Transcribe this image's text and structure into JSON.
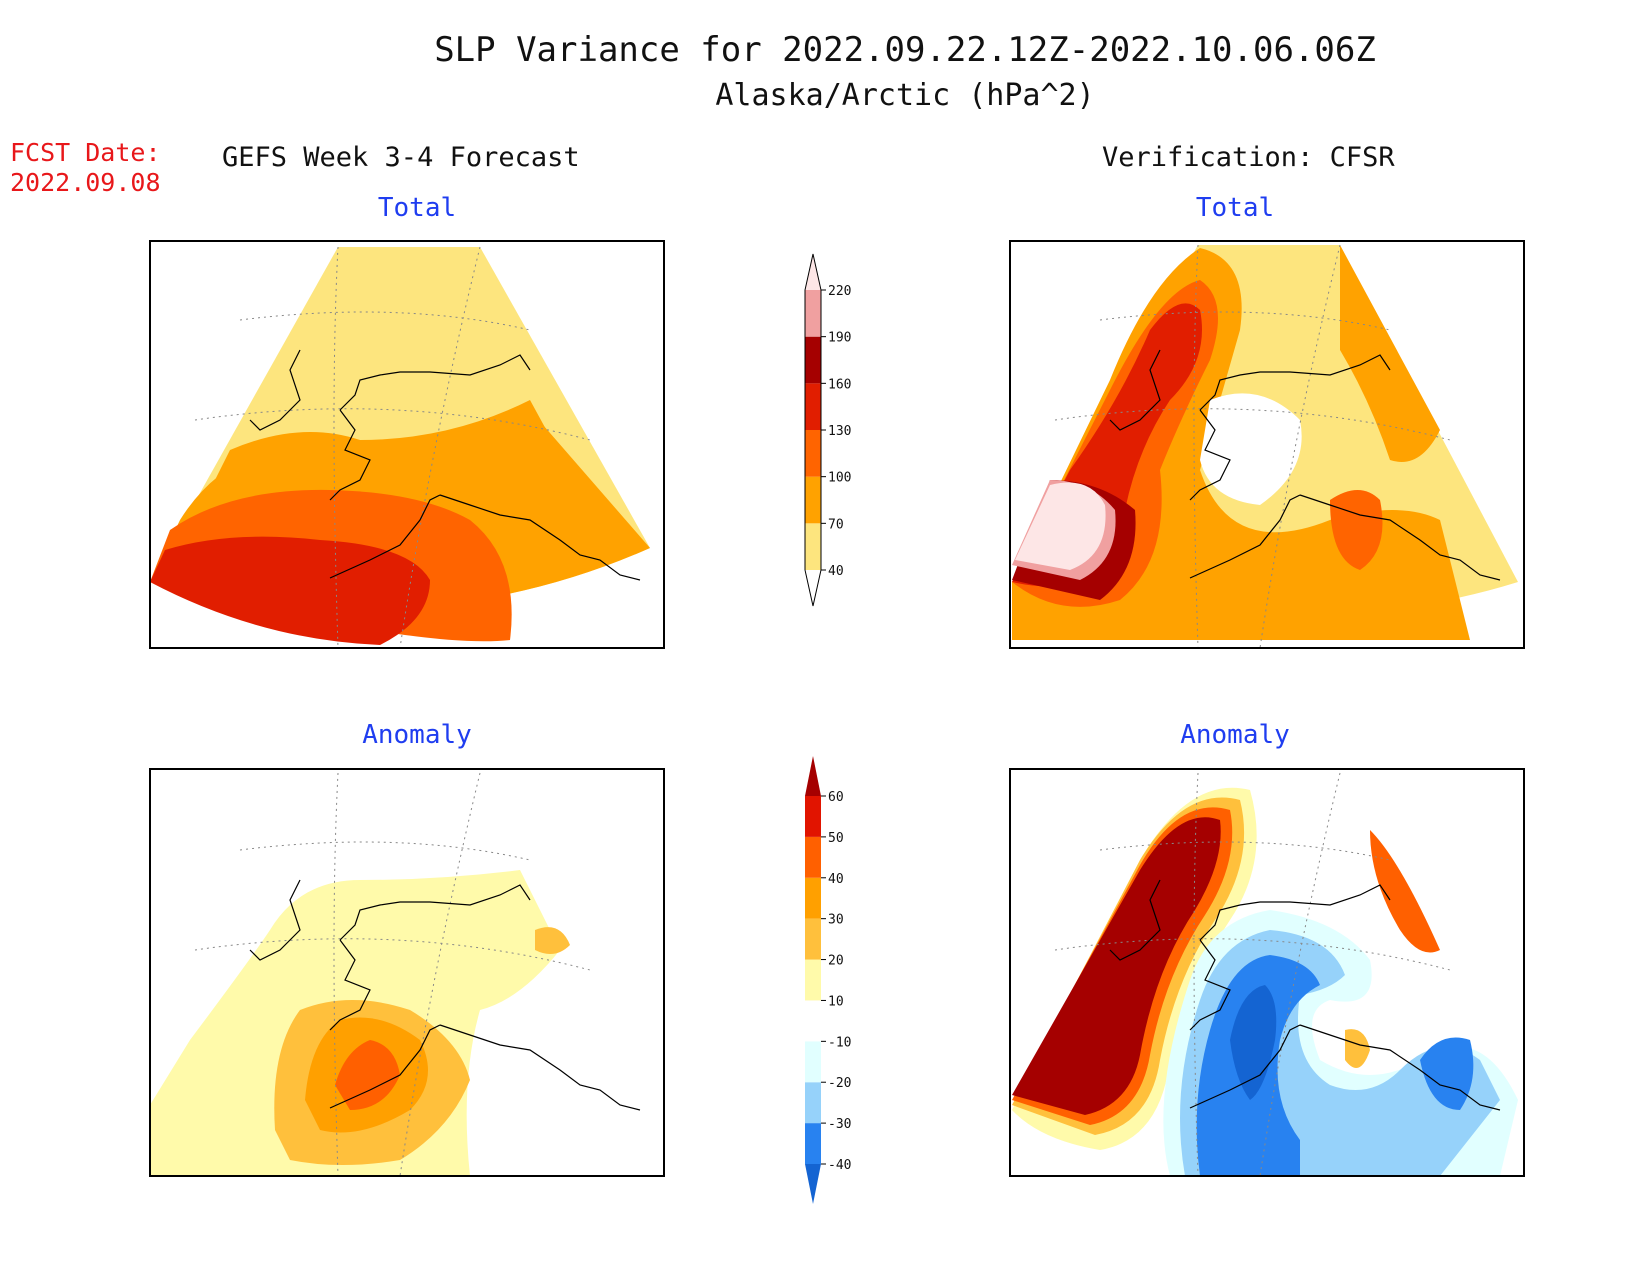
{
  "title": {
    "line1": "SLP Variance for 2022.09.22.12Z-2022.10.06.06Z",
    "line2": "Alaska/Arctic (hPa^2)"
  },
  "forecast_date": {
    "label": "FCST Date:",
    "value": "2022.09.08"
  },
  "columns": {
    "left": "GEFS Week 3-4 Forecast",
    "right": "Verification: CFSR"
  },
  "panels": [
    {
      "title": "Total"
    },
    {
      "title": "Total"
    },
    {
      "title": "Anomaly"
    },
    {
      "title": "Anomaly"
    }
  ],
  "colorbars": {
    "total": {
      "levels": [
        "40",
        "70",
        "100",
        "130",
        "160",
        "190",
        "220"
      ],
      "colors": [
        "#fde57e",
        "#ffa200",
        "#ff6400",
        "#e11e00",
        "#a50000",
        "#f0a0a0",
        "#fde6e6"
      ]
    },
    "anomaly": {
      "levels": [
        "-40",
        "-30",
        "-20",
        "-10",
        "10",
        "20",
        "30",
        "40",
        "50",
        "60"
      ],
      "colors": [
        "#1464d2",
        "#2882f0",
        "#96d2fa",
        "#e1ffff",
        "#ffffff",
        "#fffaaa",
        "#ffc03c",
        "#ffa000",
        "#ff6000",
        "#e11400",
        "#a50000"
      ]
    }
  },
  "palette": {
    "c40": "#fde57e",
    "c70": "#ffa200",
    "c100": "#ff6400",
    "c130": "#e11e00",
    "c160": "#a50000",
    "c190": "#f0a0a0",
    "c220": "#fde6e6",
    "a_neg40": "#1464d2",
    "a_neg30": "#2882f0",
    "a_neg20": "#96d2fa",
    "a_neg10": "#e1ffff",
    "a_pos10": "#fffaaa",
    "a_pos20": "#ffc03c",
    "a_pos30": "#ffa000",
    "a_pos40": "#ff6000",
    "a_pos50": "#e11400",
    "a_pos60": "#a50000"
  }
}
